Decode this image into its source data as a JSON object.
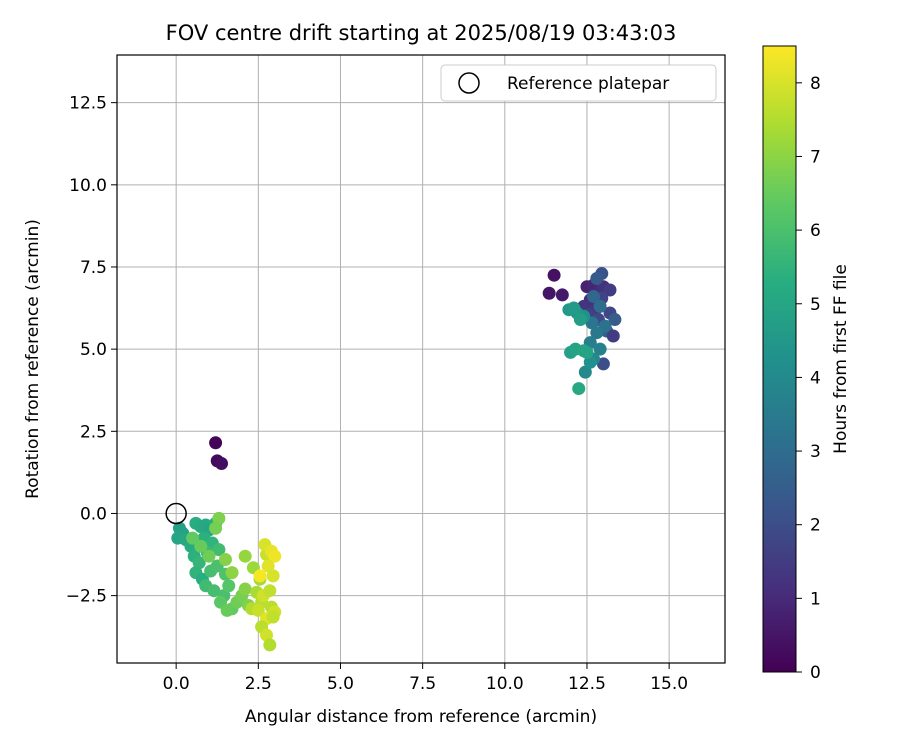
{
  "chart_data": {
    "type": "scatter",
    "title": "FOV centre drift starting at 2025/08/19 03:43:03",
    "xlabel": "Angular distance from reference (arcmin)",
    "ylabel": "Rotation from reference (arcmin)",
    "xlim": [
      -1.8,
      16.7
    ],
    "ylim": [
      -4.55,
      13.95
    ],
    "xticks": [
      0.0,
      2.5,
      5.0,
      7.5,
      10.0,
      12.5,
      15.0
    ],
    "yticks": [
      -2.5,
      0.0,
      2.5,
      5.0,
      7.5,
      10.0,
      12.5
    ],
    "xtick_labels": [
      "0.0",
      "2.5",
      "5.0",
      "7.5",
      "10.0",
      "12.5",
      "15.0"
    ],
    "ytick_labels": [
      "−2.5",
      "0.0",
      "2.5",
      "5.0",
      "7.5",
      "10.0",
      "12.5"
    ],
    "grid": true,
    "legend": {
      "position": "top-right",
      "entries": [
        {
          "label": "Reference platepar",
          "marker": "open-circle"
        }
      ]
    },
    "reference_point": {
      "x": 0.0,
      "y": 0.0
    },
    "colorbar": {
      "label": "Hours from first FF file",
      "range": [
        0,
        8.5
      ],
      "ticks": [
        0,
        1,
        2,
        3,
        4,
        5,
        6,
        7,
        8
      ],
      "tick_labels": [
        "0",
        "1",
        "2",
        "3",
        "4",
        "5",
        "6",
        "7",
        "8"
      ],
      "colormap": "viridis"
    },
    "points": [
      {
        "x": 1.2,
        "y": 2.15,
        "t": 0.1
      },
      {
        "x": 1.25,
        "y": 1.6,
        "t": 0.2
      },
      {
        "x": 1.38,
        "y": 1.52,
        "t": 0.3
      },
      {
        "x": 11.5,
        "y": 7.25,
        "t": 0.4
      },
      {
        "x": 11.35,
        "y": 6.7,
        "t": 0.5
      },
      {
        "x": 11.75,
        "y": 6.65,
        "t": 0.6
      },
      {
        "x": 12.5,
        "y": 6.9,
        "t": 0.8
      },
      {
        "x": 12.7,
        "y": 6.95,
        "t": 0.9
      },
      {
        "x": 12.85,
        "y": 6.7,
        "t": 1.0
      },
      {
        "x": 12.6,
        "y": 6.5,
        "t": 1.1
      },
      {
        "x": 13.0,
        "y": 6.9,
        "t": 1.2
      },
      {
        "x": 12.4,
        "y": 6.3,
        "t": 1.3
      },
      {
        "x": 12.75,
        "y": 6.2,
        "t": 1.4
      },
      {
        "x": 13.2,
        "y": 6.8,
        "t": 1.5
      },
      {
        "x": 12.55,
        "y": 6.05,
        "t": 1.6
      },
      {
        "x": 12.95,
        "y": 6.55,
        "t": 1.7
      },
      {
        "x": 13.2,
        "y": 6.1,
        "t": 1.8
      },
      {
        "x": 12.85,
        "y": 5.9,
        "t": 1.9
      },
      {
        "x": 13.0,
        "y": 4.55,
        "t": 2.0
      },
      {
        "x": 12.95,
        "y": 7.3,
        "t": 2.2
      },
      {
        "x": 12.8,
        "y": 7.15,
        "t": 2.4
      },
      {
        "x": 13.35,
        "y": 5.9,
        "t": 2.5
      },
      {
        "x": 13.1,
        "y": 5.55,
        "t": 2.6
      },
      {
        "x": 12.7,
        "y": 6.6,
        "t": 2.8
      },
      {
        "x": 12.9,
        "y": 6.3,
        "t": 3.0
      },
      {
        "x": 13.05,
        "y": 5.7,
        "t": 3.2
      },
      {
        "x": 12.65,
        "y": 5.8,
        "t": 3.3
      },
      {
        "x": 13.3,
        "y": 5.4,
        "t": 1.5
      },
      {
        "x": 12.8,
        "y": 5.5,
        "t": 3.4
      },
      {
        "x": 12.6,
        "y": 5.2,
        "t": 3.6
      },
      {
        "x": 12.9,
        "y": 5.0,
        "t": 3.7
      },
      {
        "x": 12.7,
        "y": 4.7,
        "t": 3.9
      },
      {
        "x": 12.45,
        "y": 4.3,
        "t": 4.0
      },
      {
        "x": 12.6,
        "y": 4.6,
        "t": 4.2
      },
      {
        "x": 12.4,
        "y": 6.0,
        "t": 4.3
      },
      {
        "x": 12.2,
        "y": 6.1,
        "t": 4.4
      },
      {
        "x": 11.95,
        "y": 6.2,
        "t": 4.5
      },
      {
        "x": 12.1,
        "y": 6.25,
        "t": 4.6
      },
      {
        "x": 12.3,
        "y": 5.9,
        "t": 4.7
      },
      {
        "x": 12.0,
        "y": 4.9,
        "t": 4.8
      },
      {
        "x": 12.15,
        "y": 5.0,
        "t": 4.9
      },
      {
        "x": 12.4,
        "y": 4.95,
        "t": 5.0
      },
      {
        "x": 12.25,
        "y": 3.8,
        "t": 5.1
      },
      {
        "x": 12.5,
        "y": 4.9,
        "t": 4.9
      },
      {
        "x": 0.1,
        "y": -0.45,
        "t": 4.8
      },
      {
        "x": 0.2,
        "y": -0.6,
        "t": 4.9
      },
      {
        "x": 0.05,
        "y": -0.75,
        "t": 5.0
      },
      {
        "x": 0.3,
        "y": -0.8,
        "t": 5.1
      },
      {
        "x": 0.45,
        "y": -1.0,
        "t": 5.2
      },
      {
        "x": 0.6,
        "y": -0.3,
        "t": 5.3
      },
      {
        "x": 0.75,
        "y": -0.4,
        "t": 5.2
      },
      {
        "x": 0.9,
        "y": -0.35,
        "t": 5.1
      },
      {
        "x": 1.0,
        "y": -0.5,
        "t": 5.0
      },
      {
        "x": 1.2,
        "y": -0.3,
        "t": 5.3
      },
      {
        "x": 0.85,
        "y": -0.75,
        "t": 5.4
      },
      {
        "x": 1.1,
        "y": -0.9,
        "t": 5.5
      },
      {
        "x": 0.55,
        "y": -1.3,
        "t": 5.4
      },
      {
        "x": 0.7,
        "y": -1.5,
        "t": 5.6
      },
      {
        "x": 0.95,
        "y": -1.2,
        "t": 5.7
      },
      {
        "x": 1.3,
        "y": -1.1,
        "t": 5.8
      },
      {
        "x": 0.6,
        "y": -1.8,
        "t": 5.5
      },
      {
        "x": 0.8,
        "y": -2.0,
        "t": 5.3
      },
      {
        "x": 1.05,
        "y": -1.75,
        "t": 5.9
      },
      {
        "x": 1.25,
        "y": -1.6,
        "t": 6.0
      },
      {
        "x": 1.5,
        "y": -1.85,
        "t": 6.1
      },
      {
        "x": 0.9,
        "y": -2.2,
        "t": 5.8
      },
      {
        "x": 1.15,
        "y": -2.35,
        "t": 5.9
      },
      {
        "x": 1.45,
        "y": -2.5,
        "t": 6.0
      },
      {
        "x": 1.6,
        "y": -2.2,
        "t": 6.2
      },
      {
        "x": 1.35,
        "y": -2.7,
        "t": 6.3
      },
      {
        "x": 1.7,
        "y": -2.9,
        "t": 6.4
      },
      {
        "x": 1.55,
        "y": -2.95,
        "t": 6.5
      },
      {
        "x": 1.85,
        "y": -2.7,
        "t": 6.6
      },
      {
        "x": 2.0,
        "y": -2.5,
        "t": 6.7
      },
      {
        "x": 2.2,
        "y": -2.8,
        "t": 6.8
      },
      {
        "x": 2.1,
        "y": -2.3,
        "t": 6.9
      },
      {
        "x": 1.3,
        "y": -0.15,
        "t": 6.8
      },
      {
        "x": 1.2,
        "y": -0.45,
        "t": 6.7
      },
      {
        "x": 1.0,
        "y": -1.3,
        "t": 6.6
      },
      {
        "x": 0.75,
        "y": -1.0,
        "t": 6.5
      },
      {
        "x": 0.5,
        "y": -0.75,
        "t": 6.4
      },
      {
        "x": 1.5,
        "y": -1.4,
        "t": 6.9
      },
      {
        "x": 1.7,
        "y": -1.8,
        "t": 7.0
      },
      {
        "x": 2.1,
        "y": -1.3,
        "t": 7.1
      },
      {
        "x": 2.35,
        "y": -1.65,
        "t": 7.2
      },
      {
        "x": 2.55,
        "y": -2.0,
        "t": 7.3
      },
      {
        "x": 2.45,
        "y": -2.4,
        "t": 7.4
      },
      {
        "x": 2.3,
        "y": -2.9,
        "t": 7.5
      },
      {
        "x": 2.6,
        "y": -2.7,
        "t": 7.6
      },
      {
        "x": 2.75,
        "y": -1.25,
        "t": 7.8
      },
      {
        "x": 2.7,
        "y": -0.95,
        "t": 8.0
      },
      {
        "x": 2.9,
        "y": -1.15,
        "t": 8.2
      },
      {
        "x": 3.0,
        "y": -1.3,
        "t": 8.3
      },
      {
        "x": 2.8,
        "y": -1.6,
        "t": 8.1
      },
      {
        "x": 2.95,
        "y": -1.9,
        "t": 8.0
      },
      {
        "x": 2.55,
        "y": -1.9,
        "t": 8.4
      },
      {
        "x": 2.65,
        "y": -2.5,
        "t": 7.9
      },
      {
        "x": 2.85,
        "y": -2.35,
        "t": 7.7
      },
      {
        "x": 2.5,
        "y": -2.95,
        "t": 7.8
      },
      {
        "x": 2.9,
        "y": -2.85,
        "t": 7.6
      },
      {
        "x": 3.0,
        "y": -3.0,
        "t": 7.9
      },
      {
        "x": 2.75,
        "y": -3.2,
        "t": 8.1
      },
      {
        "x": 2.6,
        "y": -3.45,
        "t": 7.6
      },
      {
        "x": 2.75,
        "y": -3.7,
        "t": 7.9
      },
      {
        "x": 2.85,
        "y": -4.0,
        "t": 7.5
      },
      {
        "x": 2.95,
        "y": -3.15,
        "t": 7.7
      }
    ]
  }
}
